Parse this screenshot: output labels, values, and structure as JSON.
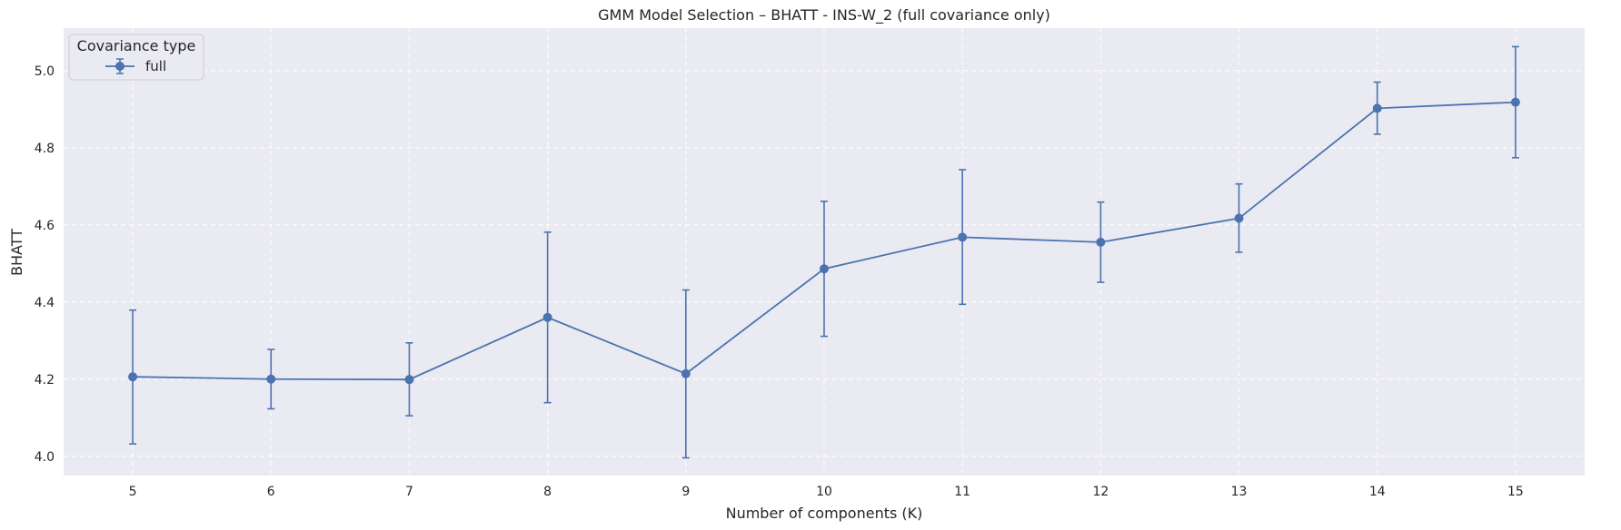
{
  "chart_data": {
    "type": "line",
    "title": "GMM Model Selection – BHATT - INS-W_2 (full covariance only)",
    "xlabel": "Number of components (K)",
    "ylabel": "BHATT",
    "x": [
      5,
      6,
      7,
      8,
      9,
      10,
      11,
      12,
      13,
      14,
      15
    ],
    "xlim": [
      4.5,
      15.5
    ],
    "ylim": [
      3.95,
      5.11
    ],
    "yticks": [
      4.0,
      4.2,
      4.4,
      4.6,
      4.8,
      5.0
    ],
    "ytick_labels": [
      "4.0",
      "4.2",
      "4.4",
      "4.6",
      "4.8",
      "5.0"
    ],
    "xtick_labels": [
      "5",
      "6",
      "7",
      "8",
      "9",
      "10",
      "11",
      "12",
      "13",
      "14",
      "15"
    ],
    "grid": true,
    "legend": {
      "title": "Covariance type",
      "position": "top-left"
    },
    "series": [
      {
        "name": "full",
        "color": "#4c72b0",
        "values": [
          4.206,
          4.2,
          4.199,
          4.36,
          4.214,
          4.486,
          4.568,
          4.555,
          4.617,
          4.902,
          4.918
        ],
        "error_low": [
          4.032,
          4.123,
          4.105,
          4.139,
          3.996,
          4.311,
          4.394,
          4.451,
          4.529,
          4.835,
          4.774
        ],
        "error_high": [
          4.379,
          4.277,
          4.294,
          4.581,
          4.431,
          4.661,
          4.743,
          4.659,
          4.706,
          4.97,
          5.062
        ]
      }
    ]
  }
}
